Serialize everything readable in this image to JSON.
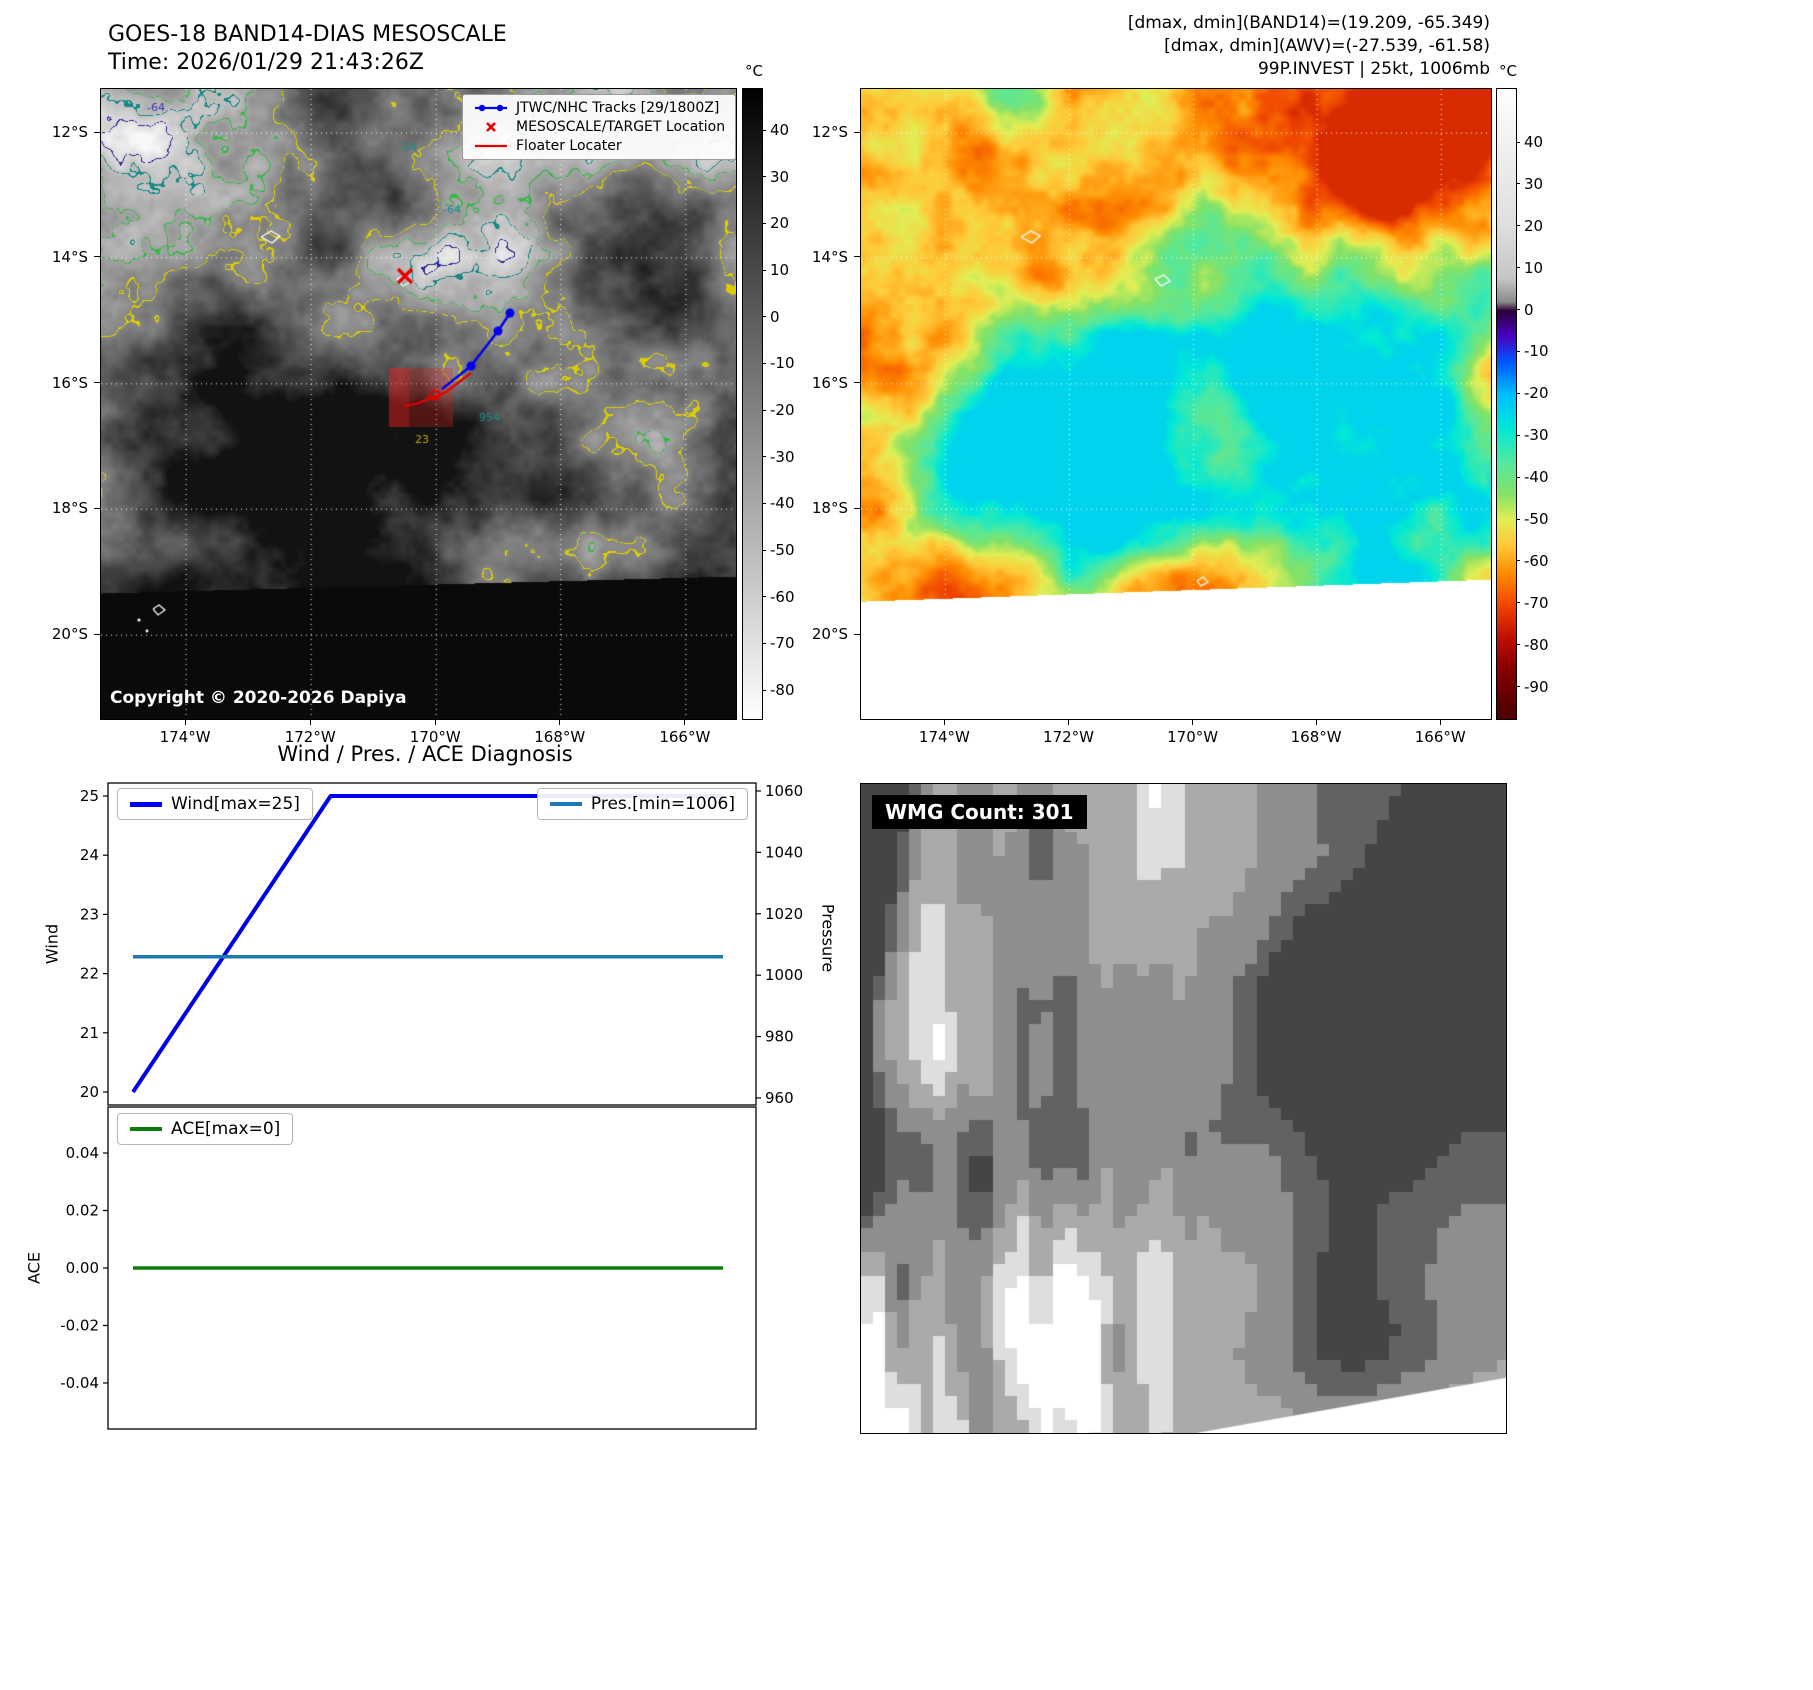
{
  "band14": {
    "title": "GOES-18 BAND14-DIAS MESOSCALE",
    "time_line": "Time: 2026/01/29 21:43:26Z",
    "copyright": "Copyright © 2020-2026 Dapiya",
    "legend_items": [
      {
        "label": "JTWC/NHC Tracks [29/1800Z]",
        "color": "#0000ee",
        "marker": "line-dot"
      },
      {
        "label": "MESOSCALE/TARGET Location",
        "color": "#e80000",
        "marker": "x"
      },
      {
        "label": "Floater Locater",
        "color": "#e80000",
        "marker": "line"
      }
    ],
    "contour_labels": [
      "-64",
      "-54",
      "-64",
      "954",
      "23"
    ],
    "colorbar": {
      "unit": "°C",
      "ticks": [
        40,
        30,
        20,
        10,
        0,
        -10,
        -20,
        -30,
        -40,
        -50,
        -60,
        -70,
        -80
      ]
    },
    "lat_ticks": [
      "12°S",
      "14°S",
      "16°S",
      "18°S",
      "20°S"
    ],
    "lon_ticks": [
      "174°W",
      "172°W",
      "170°W",
      "168°W",
      "166°W"
    ]
  },
  "awv": {
    "header_lines": [
      "[dmax, dmin](BAND14)=(19.209, -65.349)",
      "[dmax, dmin](AWV)=(-27.539, -61.58)",
      "99P.INVEST | 25kt, 1006mb"
    ],
    "colorbar": {
      "unit": "°C",
      "ticks": [
        40,
        30,
        20,
        10,
        0,
        -10,
        -20,
        -30,
        -40,
        -50,
        -60,
        -70,
        -80,
        -90
      ]
    },
    "lat_ticks": [
      "12°S",
      "14°S",
      "16°S",
      "18°S",
      "20°S"
    ],
    "lon_ticks": [
      "174°W",
      "172°W",
      "170°W",
      "168°W",
      "166°W"
    ]
  },
  "diagnosis": {
    "title": "Wind / Pres. / ACE Diagnosis",
    "wind_ylabel": "Wind",
    "pressure_ylabel": "Pressure",
    "ace_ylabel": "ACE"
  },
  "wmg": {
    "label": "WMG Count: 301"
  },
  "chart_data": [
    {
      "type": "line",
      "title": "Wind / Pres. / ACE Diagnosis",
      "subplot": "wind_pressure",
      "x_norm_range": [
        0,
        1
      ],
      "left_axis": {
        "label": "Wind",
        "ticks": [
          20,
          21,
          22,
          23,
          24,
          25
        ],
        "lim": [
          19.78,
          25.22
        ]
      },
      "right_axis": {
        "label": "Pressure",
        "ticks": [
          960,
          980,
          1000,
          1020,
          1040,
          1060
        ],
        "lim": [
          957.7,
          1062.6
        ]
      },
      "series": [
        {
          "name": "Wind[max=25]",
          "color": "#0000ee",
          "axis": "left",
          "x": [
            0,
            0.335,
            1
          ],
          "y": [
            20,
            25,
            25
          ]
        },
        {
          "name": "Pres.[min=1006]",
          "color": "#1f77b4",
          "axis": "right",
          "x": [
            0,
            1
          ],
          "y": [
            1006,
            1006
          ]
        }
      ]
    },
    {
      "type": "line",
      "subplot": "ace",
      "left_axis": {
        "label": "ACE",
        "ticks": [
          -0.04,
          -0.02,
          0,
          0.02,
          0.04
        ],
        "lim": [
          -0.056,
          0.056
        ]
      },
      "series": [
        {
          "name": "ACE[max=0]",
          "color": "#0a7d0a",
          "axis": "left",
          "x": [
            0,
            1
          ],
          "y": [
            0,
            0
          ]
        }
      ]
    }
  ]
}
